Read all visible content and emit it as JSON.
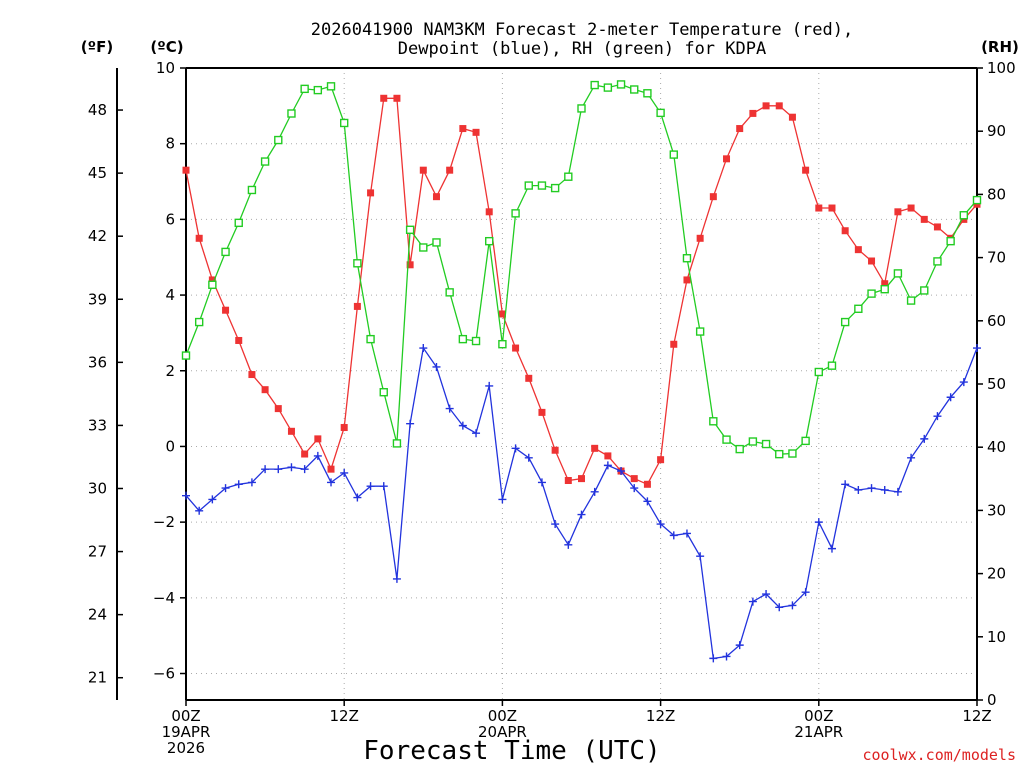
{
  "chart_data": {
    "type": "line",
    "title": [
      "2026041900 NAM3KM Forecast 2-meter Temperature (red),",
      "Dewpoint (blue), RH (green) for KDPA"
    ],
    "xlabel": "Forecast Time (UTC)",
    "credit": "coolwx.com/models",
    "left_units_f": "(ºF)",
    "left_units_c": "(ºC)",
    "right_units": "(RH)",
    "x_range_hours": [
      0,
      60
    ],
    "x_ticks": [
      {
        "hour": 0,
        "lines": [
          "00Z",
          "19APR",
          "2026"
        ]
      },
      {
        "hour": 12,
        "lines": [
          "12Z"
        ]
      },
      {
        "hour": 24,
        "lines": [
          "00Z",
          "20APR"
        ]
      },
      {
        "hour": 36,
        "lines": [
          "12Z"
        ]
      },
      {
        "hour": 48,
        "lines": [
          "00Z",
          "21APR"
        ]
      },
      {
        "hour": 60,
        "lines": [
          "12Z"
        ]
      }
    ],
    "y_left_c": {
      "range": [
        -6.7,
        10.0
      ],
      "ticks": [
        "10",
        "8",
        "6",
        "4",
        "2",
        "0",
        "−2",
        "−4",
        "−6"
      ],
      "tick_values": [
        10,
        8,
        6,
        4,
        2,
        0,
        -2,
        -4,
        -6
      ]
    },
    "y_left_f": {
      "ticks": [
        "48",
        "45",
        "42",
        "39",
        "36",
        "33",
        "30",
        "27",
        "24",
        "21"
      ],
      "tick_values": [
        48,
        45,
        42,
        39,
        36,
        33,
        30,
        27,
        24,
        21
      ]
    },
    "y_right_rh": {
      "range": [
        0,
        100
      ],
      "ticks": [
        "100",
        "90",
        "80",
        "70",
        "60",
        "50",
        "40",
        "30",
        "20",
        "10",
        "0"
      ],
      "tick_values": [
        100,
        90,
        80,
        70,
        60,
        50,
        40,
        30,
        20,
        10,
        0
      ]
    },
    "series": [
      {
        "name": "2-meter Temperature",
        "color": "#ee3333",
        "marker": "filled-square",
        "axis": "celsius",
        "x": [
          0,
          1,
          2,
          3,
          4,
          5,
          6,
          7,
          8,
          9,
          10,
          11,
          12,
          13,
          14,
          15,
          16,
          17,
          18,
          19,
          20,
          21,
          22,
          23,
          24,
          25,
          26,
          27,
          28,
          29,
          30,
          31,
          32,
          33,
          34,
          35,
          36,
          37,
          38,
          39,
          40,
          41,
          42,
          43,
          44,
          45,
          46,
          47,
          48,
          49,
          50,
          51,
          52,
          53,
          54,
          55,
          56,
          57,
          58,
          59,
          60
        ],
        "values": [
          7.3,
          5.5,
          4.4,
          3.6,
          2.8,
          1.9,
          1.5,
          1.0,
          0.4,
          -0.2,
          0.2,
          -0.6,
          0.5,
          3.7,
          6.7,
          9.2,
          9.2,
          4.8,
          7.3,
          6.6,
          7.3,
          8.4,
          8.3,
          6.2,
          3.5,
          2.6,
          1.8,
          0.9,
          -0.1,
          -0.9,
          -0.85,
          -0.05,
          -0.25,
          -0.65,
          -0.85,
          -1.0,
          -0.35,
          2.7,
          4.4,
          5.5,
          6.6,
          7.6,
          8.4,
          8.8,
          9.0,
          9.0,
          8.7,
          7.3,
          6.3,
          6.3,
          5.7,
          5.2,
          4.9,
          4.3,
          6.2,
          6.3,
          6.0,
          5.8,
          5.5,
          6.0,
          6.4
        ]
      },
      {
        "name": "Dewpoint",
        "color": "#2233dd",
        "marker": "plus",
        "axis": "celsius",
        "x": [
          0,
          1,
          2,
          3,
          4,
          5,
          6,
          7,
          8,
          9,
          10,
          11,
          12,
          13,
          14,
          15,
          16,
          17,
          18,
          19,
          20,
          21,
          22,
          23,
          24,
          25,
          26,
          27,
          28,
          29,
          30,
          31,
          32,
          33,
          34,
          35,
          36,
          37,
          38,
          39,
          40,
          41,
          42,
          43,
          44,
          45,
          46,
          47,
          48,
          49,
          50,
          51,
          52,
          53,
          54,
          55,
          56,
          57,
          58,
          59,
          60
        ],
        "values": [
          -1.3,
          -1.7,
          -1.4,
          -1.1,
          -1.0,
          -0.95,
          -0.6,
          -0.6,
          -0.55,
          -0.6,
          -0.25,
          -0.95,
          -0.7,
          -1.35,
          -1.05,
          -1.05,
          -3.5,
          0.6,
          2.6,
          2.1,
          1.0,
          0.55,
          0.35,
          1.6,
          -1.4,
          -0.05,
          -0.3,
          -0.95,
          -2.05,
          -2.6,
          -1.8,
          -1.2,
          -0.5,
          -0.65,
          -1.1,
          -1.45,
          -2.05,
          -2.35,
          -2.3,
          -2.9,
          -5.6,
          -5.55,
          -5.25,
          -4.1,
          -3.9,
          -4.25,
          -4.2,
          -3.85,
          -2.0,
          -2.7,
          -1.0,
          -1.15,
          -1.1,
          -1.15,
          -1.2,
          -0.3,
          0.2,
          0.8,
          1.3,
          1.7,
          2.6
        ]
      },
      {
        "name": "RH",
        "color": "#22cc22",
        "marker": "open-square",
        "axis": "rh",
        "x": [
          0,
          1,
          2,
          3,
          4,
          5,
          6,
          7,
          8,
          9,
          10,
          11,
          12,
          13,
          14,
          15,
          16,
          17,
          18,
          19,
          20,
          21,
          22,
          23,
          24,
          25,
          26,
          27,
          28,
          29,
          30,
          31,
          32,
          33,
          34,
          35,
          36,
          37,
          38,
          39,
          40,
          41,
          42,
          43,
          44,
          45,
          46,
          47,
          48,
          49,
          50,
          51,
          52,
          53,
          54,
          55,
          56,
          57,
          58,
          59,
          60
        ],
        "values": [
          54.5,
          59.8,
          65.7,
          70.9,
          75.5,
          80.7,
          85.2,
          88.6,
          92.8,
          96.7,
          96.5,
          97.1,
          91.3,
          69.1,
          57.1,
          48.7,
          40.6,
          74.4,
          71.6,
          72.4,
          64.5,
          57.1,
          56.8,
          72.6,
          56.3,
          77.0,
          81.4,
          81.4,
          81.0,
          82.8,
          93.6,
          97.3,
          96.9,
          97.4,
          96.6,
          96.0,
          92.9,
          86.3,
          69.9,
          58.3,
          44.1,
          41.2,
          39.7,
          40.9,
          40.5,
          38.9,
          39.0,
          41.0,
          51.9,
          52.9,
          59.8,
          61.9,
          64.3,
          65.0,
          67.5,
          63.2,
          64.8,
          69.4,
          72.6,
          76.7,
          79.1
        ]
      }
    ]
  }
}
